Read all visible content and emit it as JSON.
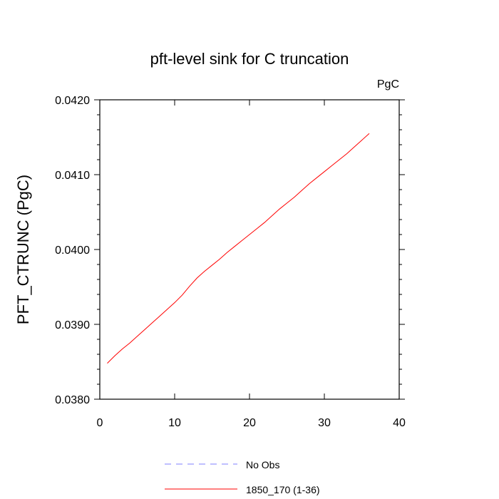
{
  "chart_data": {
    "type": "line",
    "title": "pft-level sink for C truncation",
    "units_label": "PgC",
    "xlabel": "",
    "ylabel": "PFT_CTRUNC  (PgC)",
    "xlim": [
      0,
      40
    ],
    "ylim": [
      0.038,
      0.042
    ],
    "x_ticks": [
      0,
      10,
      20,
      30,
      40
    ],
    "x_tick_labels": [
      "0",
      "10",
      "20",
      "30",
      "40"
    ],
    "y_ticks": [
      0.038,
      0.039,
      0.04,
      0.041,
      0.042
    ],
    "y_tick_labels": [
      "0.0380",
      "0.0390",
      "0.0400",
      "0.0410",
      "0.0420"
    ],
    "grid": false,
    "legend_position": "bottom",
    "legend": [
      {
        "label": "No Obs",
        "color": "#8080ff",
        "style": "dashed"
      },
      {
        "label": "1850_170 (1-36)",
        "color": "#ff0000",
        "style": "solid"
      }
    ],
    "series": [
      {
        "name": "1850_170 (1-36)",
        "color": "#ff0000",
        "x": [
          1,
          2,
          3,
          4,
          5,
          6,
          7,
          8,
          9,
          10,
          11,
          12,
          13,
          14,
          15,
          16,
          17,
          18,
          19,
          20,
          21,
          22,
          23,
          24,
          25,
          26,
          27,
          28,
          29,
          30,
          31,
          32,
          33,
          34,
          35,
          36
        ],
        "y": [
          0.03848,
          0.03858,
          0.03867,
          0.03875,
          0.03884,
          0.03893,
          0.03902,
          0.03911,
          0.0392,
          0.03929,
          0.03939,
          0.03951,
          0.03962,
          0.03971,
          0.03979,
          0.03987,
          0.03996,
          0.04004,
          0.04012,
          0.0402,
          0.04028,
          0.04036,
          0.04045,
          0.04054,
          0.04062,
          0.0407,
          0.04079,
          0.04088,
          0.04096,
          0.04104,
          0.04112,
          0.0412,
          0.04128,
          0.04137,
          0.04146,
          0.04155
        ]
      }
    ]
  }
}
